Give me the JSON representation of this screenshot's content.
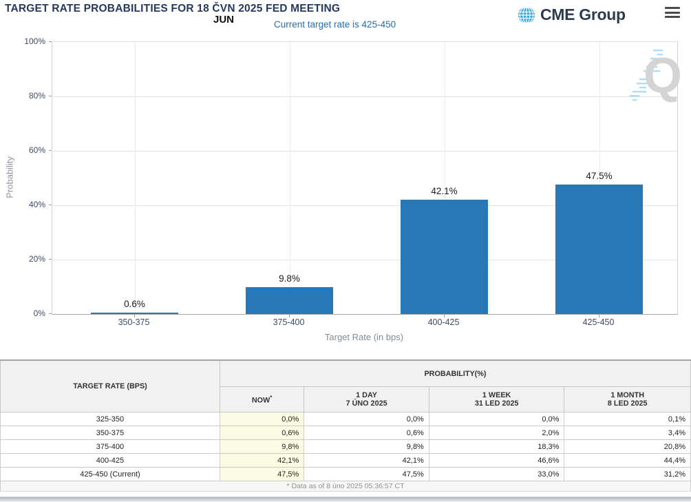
{
  "header": {
    "title": "TARGET RATE PROBABILITIES FOR 18 ČVN 2025 FED MEETING",
    "logo_text": "CME Group"
  },
  "chart": {
    "month_label": "JUN",
    "subtitle": "Current target rate is 425-450",
    "y_axis_title": "Probability",
    "x_axis_title": "Target Rate (in bps)",
    "y_ticks": [
      "100%",
      "80%",
      "60%",
      "40%",
      "20%",
      "0%"
    ],
    "watermark_letter": "Q"
  },
  "chart_data": {
    "type": "bar",
    "title": "JUN",
    "subtitle": "Current target rate is 425-450",
    "categories": [
      "350-375",
      "375-400",
      "400-425",
      "425-450"
    ],
    "values": [
      0.6,
      9.8,
      42.1,
      47.5
    ],
    "bar_labels": [
      "0.6%",
      "9.8%",
      "42.1%",
      "47.5%"
    ],
    "xlabel": "Target Rate (in bps)",
    "ylabel": "Probability",
    "ylim": [
      0,
      100
    ],
    "y_tick_step": 20,
    "grid": true,
    "legend": false,
    "bar_color": "#2878b8"
  },
  "table": {
    "rate_header": "TARGET RATE (BPS)",
    "col_group_header": "PROBABILITY(%)",
    "now_header": "NOW",
    "now_sup": "*",
    "col_headers": [
      {
        "line1": "1 DAY",
        "line2": "7 ÚNO 2025"
      },
      {
        "line1": "1 WEEK",
        "line2": "31 LED 2025"
      },
      {
        "line1": "1 MONTH",
        "line2": "8 LED 2025"
      }
    ],
    "rows": [
      {
        "rate": "325-350",
        "now": "0,0%",
        "day": "0,0%",
        "week": "0,0%",
        "month": "0,1%"
      },
      {
        "rate": "350-375",
        "now": "0,6%",
        "day": "0,6%",
        "week": "2,0%",
        "month": "3,4%"
      },
      {
        "rate": "375-400",
        "now": "9,8%",
        "day": "9,8%",
        "week": "18,3%",
        "month": "20,8%"
      },
      {
        "rate": "400-425",
        "now": "42,1%",
        "day": "42,1%",
        "week": "46,6%",
        "month": "44,4%"
      },
      {
        "rate": "425-450 (Current)",
        "now": "47,5%",
        "day": "47,5%",
        "week": "33,0%",
        "month": "31,2%"
      }
    ],
    "footnote": "* Data as of 8 úno 2025 05:36:57 CT"
  },
  "colors": {
    "bar": "#2878b8",
    "title_navy": "#24395e",
    "subtitle_blue": "#2a6cab",
    "now_column_bg": "#fbfbe3",
    "logo_blue": "#35a8e0"
  }
}
